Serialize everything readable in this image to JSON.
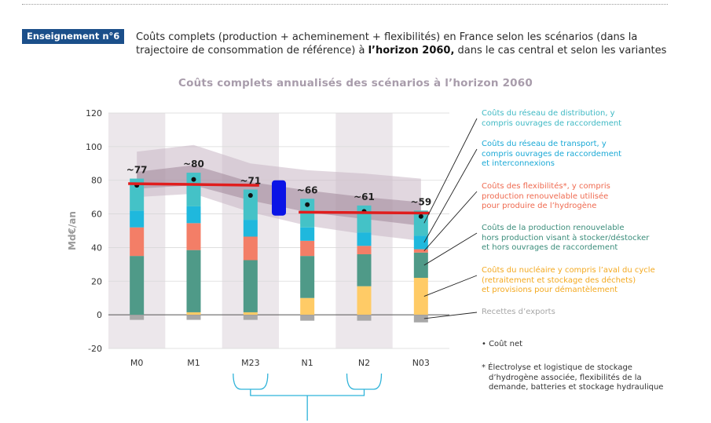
{
  "header": {
    "badge": "Enseignement n°6",
    "text_before": "Coûts complets (production + acheminement + flexibilités) en France selon les scénarios (dans la trajectoire de consommation de référence) à ",
    "text_bold": "l’horizon 2060,",
    "text_after": " dans le cas central et selon les variantes"
  },
  "chart_data": {
    "type": "bar",
    "stacked": true,
    "title": "Coûts complets annualisés des scénarios à l’horizon 2060",
    "ylabel": "Md€/an",
    "ylim": [
      -20,
      120
    ],
    "yticks": [
      "120",
      "100",
      "80",
      "60",
      "40",
      "20",
      "0",
      "-20"
    ],
    "grid": true,
    "categories": [
      "M0",
      "M1",
      "M23",
      "N1",
      "N2",
      "N03"
    ],
    "colors": {
      "nuclear": "#ffcb66",
      "renewable": "#4f9a88",
      "flex": "#f37e67",
      "transport": "#1fb8dd",
      "distribution": "#44c2c7",
      "exports": "#a8a8a8",
      "band_outer": "#c9b6c4",
      "band_inner": "#a2899b",
      "avg_line": "#e01d1d",
      "variant_marker": "#0a14e6",
      "scenario_bg": "#ece7eb",
      "bracket": "#2fb3d9"
    },
    "series": [
      {
        "name": "Coûts du réseau de distribution, y compris ouvrages de raccordement",
        "key": "distribution",
        "values": [
          19,
          20,
          18,
          17,
          16,
          15
        ]
      },
      {
        "name": "Coûts du réseau de transport, y compris ouvrages de raccordement et interconnexions",
        "key": "transport",
        "values": [
          10,
          10,
          10,
          8,
          8,
          8
        ]
      },
      {
        "name": "Coûts des flexibilités*, y compris production renouvelable utilisée pour produire de l’hydrogène",
        "key": "flex",
        "values": [
          17,
          16,
          14,
          9,
          5,
          2
        ]
      },
      {
        "name": "Coûts de la production renouvelable hors production visant à stocker/déstocker et hors ouvrages de raccordement",
        "key": "renewable",
        "values": [
          35,
          37,
          31,
          25,
          19,
          15
        ]
      },
      {
        "name": "Coûts du nucléaire y compris l’aval du cycle (retraitement et stockage des déchets) et provisions pour démantèlement",
        "key": "nuclear",
        "values": [
          0,
          1.5,
          1.5,
          10,
          17,
          22
        ]
      },
      {
        "name": "Recettes d’exports",
        "key": "exports",
        "values": [
          -3,
          -3,
          -3,
          -3.5,
          -3.5,
          -4.5
        ]
      }
    ],
    "net_cost": {
      "name": "Coût net",
      "values": [
        77,
        80.5,
        71,
        65.5,
        61.5,
        58.5
      ]
    },
    "data_labels": [
      "~77",
      "~80",
      "~71",
      "~66",
      "~61",
      "~59"
    ],
    "band_outer": {
      "upper": [
        97,
        101,
        90,
        86,
        84,
        81
      ],
      "lower": [
        70,
        72,
        61,
        53,
        48,
        44
      ]
    },
    "band_inner": {
      "upper": [
        85,
        89,
        79,
        74,
        70,
        67
      ],
      "lower": [
        75,
        77,
        68,
        61,
        57,
        53
      ]
    },
    "average_lines": [
      {
        "from": "M0",
        "to": "M23",
        "values": [
          78,
          77
        ]
      },
      {
        "from": "N1",
        "to": "N03",
        "values": [
          61,
          60.5
        ]
      }
    ],
    "variant_marker": {
      "between": [
        "M23",
        "N1"
      ],
      "from": 59,
      "to": 80
    },
    "legend": [
      {
        "key": "distribution",
        "color": "#3fb9c4",
        "lines": [
          "Coûts du réseau de distribution, y",
          "compris ouvrages de raccordement"
        ]
      },
      {
        "key": "transport",
        "color": "#1aa9d6",
        "lines": [
          "Coûts du réseau de transport, y",
          "compris ouvrages de raccordement",
          "et interconnexions"
        ]
      },
      {
        "key": "flex",
        "color": "#ef6a50",
        "lines": [
          "Coûts des flexibilités*, y compris",
          "production renouvelable utilisée",
          "pour produire de l’hydrogène"
        ]
      },
      {
        "key": "renewable",
        "color": "#3b8d7b",
        "lines": [
          "Coûts de la production renouvelable",
          "hors production visant à stocker/déstocker",
          "et hors ouvrages de raccordement"
        ]
      },
      {
        "key": "nuclear",
        "color": "#f4a91f",
        "lines": [
          "Coûts du nucléaire y compris l’aval du cycle",
          "(retraitement et stockage des déchets)",
          "et provisions pour démantèlement"
        ]
      },
      {
        "key": "exports",
        "color": "#a7a7a7",
        "lines": [
          "Recettes d’exports"
        ]
      }
    ],
    "notes": {
      "net": "• Coût net",
      "footnote": [
        "* Électrolyse et logistique de stockage",
        "d’hydrogène associée, flexibilités de la",
        "demande, batteries et stockage hydraulique"
      ]
    }
  }
}
